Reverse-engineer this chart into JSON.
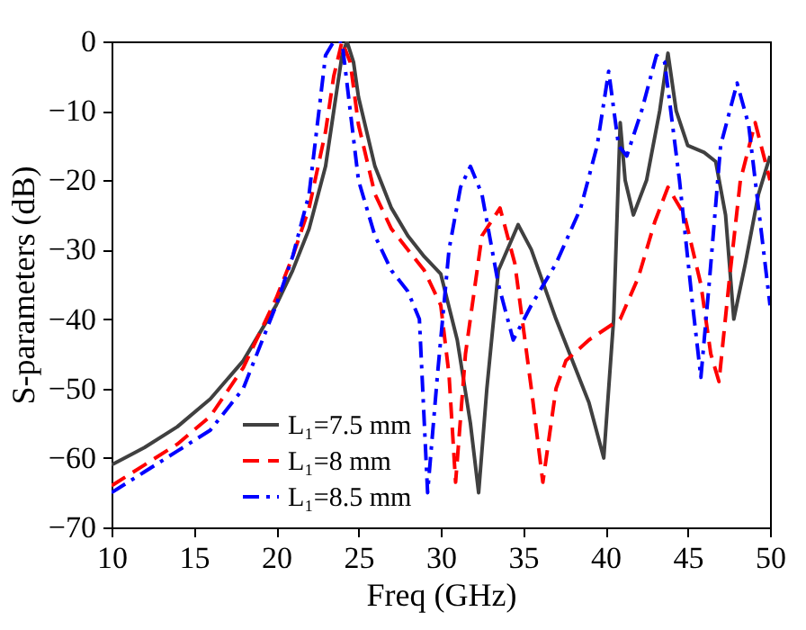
{
  "chart_data": {
    "type": "line",
    "xlabel": "Freq (GHz)",
    "ylabel": "S-parameters (dB)",
    "xlim": [
      10,
      50
    ],
    "xticks": [
      10,
      15,
      20,
      25,
      30,
      35,
      40,
      45,
      50
    ],
    "ylim": [
      -70,
      0
    ],
    "yticks": [
      -70,
      -60,
      -50,
      -40,
      -30,
      -20,
      -10,
      0
    ],
    "grid": false,
    "legend": "bottom left",
    "marker": "none",
    "series": [
      {
        "name": "L₁=7.5 mm",
        "color": "#404040",
        "line_style": "solid",
        "x": [
          10,
          12,
          14,
          16,
          18,
          20,
          21,
          22,
          23,
          23.5,
          24,
          24.3,
          24.7,
          25,
          26,
          27,
          28,
          29,
          30,
          31,
          31.8,
          32.3,
          32.8,
          33.5,
          34.7,
          35.5,
          37,
          39,
          39.9,
          40.5,
          40.9,
          41.2,
          41.7,
          42.5,
          43.3,
          43.8,
          44.3,
          45,
          46,
          46.7,
          47.3,
          47.8,
          48.5,
          49.3,
          50
        ],
        "values": [
          -61,
          -58.5,
          -55.5,
          -51.5,
          -46,
          -38,
          -33,
          -27,
          -18,
          -10,
          -2,
          0,
          -3,
          -8,
          -18,
          -24,
          -28,
          -31,
          -33.5,
          -43,
          -55,
          -65,
          -50,
          -33,
          -26.4,
          -30,
          -40,
          -52,
          -60,
          -40,
          -11.7,
          -20,
          -25,
          -20,
          -10,
          -1.7,
          -10,
          -15,
          -16,
          -17.3,
          -25,
          -40,
          -32,
          -22,
          -16.5
        ]
      },
      {
        "name": "L₁=8 mm",
        "color": "#ff0000",
        "line_style": "dashed",
        "x": [
          10,
          12,
          14,
          16,
          18,
          20,
          21,
          22,
          23,
          23.5,
          24,
          24.5,
          25,
          26,
          27,
          28,
          29,
          30,
          30.5,
          30.9,
          31.5,
          32.5,
          33.6,
          34.5,
          35.5,
          36.2,
          37,
          37.6,
          39,
          40.9,
          42,
          43,
          43.8,
          44.8,
          45.8,
          46.4,
          46.9,
          47.5,
          48.2,
          49.1,
          50
        ],
        "values": [
          -64,
          -61,
          -58,
          -54,
          -47,
          -37,
          -31,
          -24,
          -13,
          -5,
          0,
          -3,
          -12,
          -22,
          -27,
          -30,
          -33,
          -38,
          -48,
          -63.5,
          -45,
          -28,
          -24,
          -32,
          -50,
          -63.5,
          -50,
          -46,
          -43,
          -40,
          -34,
          -26,
          -21,
          -25,
          -35,
          -45,
          -49,
          -35,
          -20,
          -11.7,
          -20
        ]
      },
      {
        "name": "L₁=8.5 mm",
        "color": "#0000ff",
        "line_style": "dashdot",
        "x": [
          10,
          12,
          14,
          16,
          18,
          20,
          21,
          22,
          22.5,
          23,
          23.5,
          24,
          24.5,
          25,
          26,
          27,
          28,
          28.7,
          29.2,
          29.8,
          30.5,
          31.2,
          31.8,
          32.5,
          33.5,
          34.4,
          35.5,
          37,
          38.5,
          39.5,
          40.2,
          40.8,
          41.3,
          42.2,
          43.1,
          43.6,
          44.5,
          45.3,
          45.8,
          46.3,
          47,
          48,
          48.7,
          49.5,
          50
        ],
        "values": [
          -65,
          -62,
          -59,
          -56,
          -50,
          -38,
          -31,
          -22,
          -12,
          -2,
          0,
          0,
          -10,
          -20,
          -28,
          -33,
          -36,
          -40,
          -65,
          -48,
          -30,
          -21,
          -18,
          -22,
          -35,
          -43,
          -38,
          -32,
          -24,
          -15,
          -4.3,
          -15,
          -16.5,
          -10,
          -2,
          -3,
          -20,
          -38,
          -48.4,
          -35,
          -15,
          -6,
          -12,
          -28,
          -38
        ]
      }
    ]
  }
}
